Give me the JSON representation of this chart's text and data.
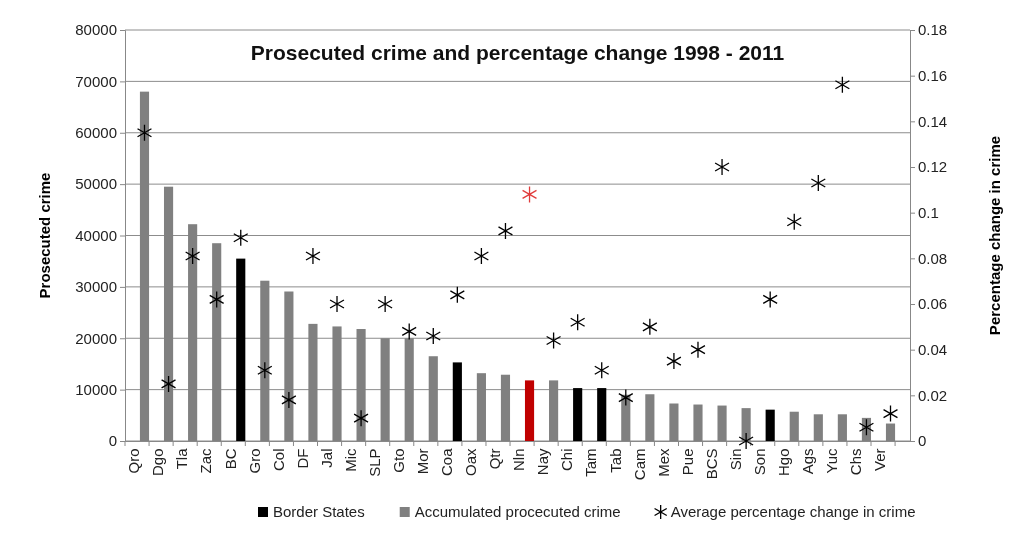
{
  "chart_data": {
    "type": "bar",
    "title": "Prosecuted crime and percentage change 1998 - 2011",
    "ylabel": "Prosecuted crime",
    "y2label": "Percentage change in crime",
    "categories": [
      "Qro",
      "Dgo",
      "Tla",
      "Zac",
      "BC",
      "Gro",
      "Col",
      "DF",
      "Jal",
      "Mic",
      "SLP",
      "Gto",
      "Mor",
      "Coa",
      "Oax",
      "Qtr",
      "Nln",
      "Nay",
      "Chi",
      "Tam",
      "Tab",
      "Cam",
      "Mex",
      "Pue",
      "BCS",
      "Sin",
      "Son",
      "Hgo",
      "Ags",
      "Yuc",
      "Chs",
      "Ver"
    ],
    "series": [
      {
        "name": "Border States",
        "color": "#000000",
        "colors": [
          null,
          null,
          null,
          null,
          "#000000",
          null,
          null,
          null,
          null,
          null,
          null,
          null,
          null,
          "#000000",
          null,
          null,
          "#c00000",
          null,
          "#000000",
          "#000000",
          null,
          null,
          null,
          null,
          null,
          null,
          "#000000",
          null,
          null,
          null,
          null,
          null
        ],
        "values": [
          null,
          null,
          null,
          null,
          35500,
          null,
          null,
          null,
          null,
          null,
          null,
          null,
          null,
          15300,
          null,
          null,
          11800,
          null,
          10300,
          10300,
          null,
          null,
          null,
          null,
          null,
          null,
          6100,
          null,
          null,
          null,
          null,
          null
        ]
      },
      {
        "name": "Accumulated procecuted crime",
        "color": "#808080",
        "values": [
          68000,
          49500,
          42200,
          38500,
          null,
          31200,
          29100,
          22800,
          22300,
          21800,
          20000,
          20000,
          16500,
          null,
          13200,
          12900,
          null,
          11800,
          null,
          null,
          9000,
          9100,
          7300,
          7100,
          6900,
          6400,
          null,
          5700,
          5200,
          5200,
          4500,
          3400
        ]
      },
      {
        "name": "Average percentage change in crime",
        "type": "scatter",
        "axis": "y2",
        "marker": "cross",
        "color": "#000000",
        "colors": [
          "#000000",
          "#000000",
          "#000000",
          "#000000",
          "#000000",
          "#000000",
          "#000000",
          "#000000",
          "#000000",
          "#000000",
          "#000000",
          "#000000",
          "#000000",
          "#000000",
          "#000000",
          "#000000",
          "#e03c3c",
          "#000000",
          "#000000",
          "#000000",
          "#000000",
          "#000000",
          "#000000",
          "#000000",
          "#000000",
          "#000000",
          "#000000",
          "#000000",
          "#000000",
          "#000000",
          "#000000",
          "#000000"
        ],
        "values": [
          0.135,
          0.025,
          0.081,
          0.062,
          0.089,
          0.031,
          0.018,
          0.081,
          0.06,
          0.01,
          0.06,
          0.048,
          0.046,
          0.064,
          0.081,
          0.092,
          0.108,
          0.044,
          0.052,
          0.031,
          0.019,
          0.05,
          0.035,
          0.04,
          0.12,
          0.0,
          0.062,
          0.096,
          0.113,
          0.156,
          0.006,
          0.012
        ]
      }
    ],
    "ylim": [
      0,
      80000
    ],
    "yticks": [
      0,
      10000,
      20000,
      30000,
      40000,
      50000,
      60000,
      70000,
      80000
    ],
    "y2lim": [
      0,
      0.18
    ],
    "y2ticks": [
      0,
      0.02,
      0.04,
      0.06,
      0.08,
      0.1,
      0.12,
      0.14,
      0.16,
      0.18
    ],
    "grid": "y",
    "legend": "bottom"
  }
}
